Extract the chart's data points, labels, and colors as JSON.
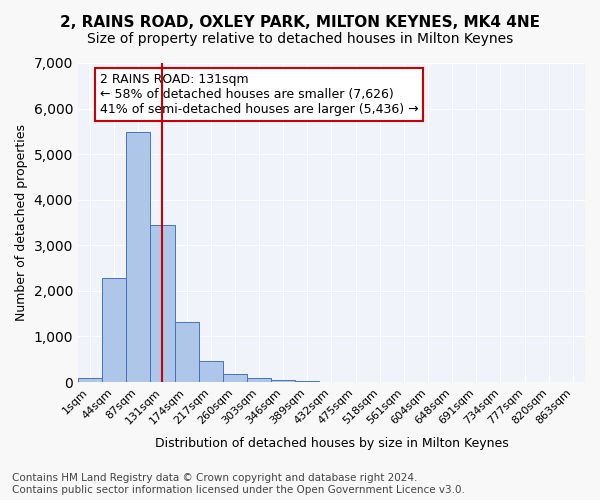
{
  "title_line1": "2, RAINS ROAD, OXLEY PARK, MILTON KEYNES, MK4 4NE",
  "title_line2": "Size of property relative to detached houses in Milton Keynes",
  "xlabel": "Distribution of detached houses by size in Milton Keynes",
  "ylabel": "Number of detached properties",
  "bin_labels": [
    "1sqm",
    "44sqm",
    "87sqm",
    "131sqm",
    "174sqm",
    "217sqm",
    "260sqm",
    "303sqm",
    "346sqm",
    "389sqm",
    "432sqm",
    "475sqm",
    "518sqm",
    "561sqm",
    "604sqm",
    "648sqm",
    "691sqm",
    "734sqm",
    "777sqm",
    "820sqm",
    "863sqm"
  ],
  "bar_values": [
    80,
    2280,
    5480,
    3450,
    1320,
    470,
    170,
    90,
    55,
    30,
    0,
    0,
    0,
    0,
    0,
    0,
    0,
    0,
    0,
    0,
    0
  ],
  "bar_color": "#aec6e8",
  "bar_edge_color": "#4472c4",
  "ylim": [
    0,
    7000
  ],
  "yticks": [
    0,
    1000,
    2000,
    3000,
    4000,
    5000,
    6000,
    7000
  ],
  "property_bin_index": 3,
  "red_line_color": "#cc0000",
  "annotation_text": "2 RAINS ROAD: 131sqm\n← 58% of detached houses are smaller (7,626)\n41% of semi-detached houses are larger (5,436) →",
  "annotation_box_color": "#ffffff",
  "annotation_border_color": "#cc0000",
  "footnote_line1": "Contains HM Land Registry data © Crown copyright and database right 2024.",
  "footnote_line2": "Contains public sector information licensed under the Open Government Licence v3.0.",
  "background_color": "#f0f4fa",
  "grid_color": "#ffffff",
  "title_fontsize": 11,
  "subtitle_fontsize": 10,
  "axis_label_fontsize": 9,
  "tick_fontsize": 8,
  "annotation_fontsize": 9,
  "footnote_fontsize": 7.5
}
